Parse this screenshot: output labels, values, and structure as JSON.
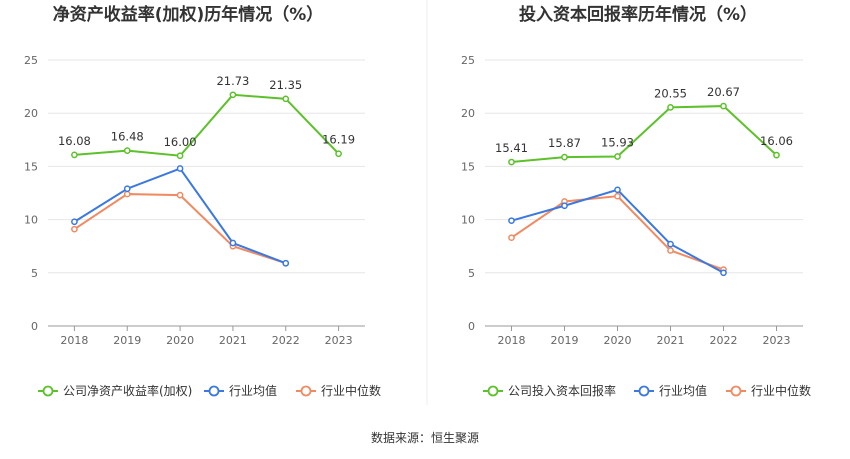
{
  "source_text": "数据来源：恒生聚源",
  "colors": {
    "company": "#5cc12a",
    "avg": "#3b78e0",
    "median": "#f08a62",
    "grid": "#e6e6e6",
    "axis": "#999999"
  },
  "chart_data": [
    {
      "type": "line",
      "title": "净资产收益率(加权)历年情况（%）",
      "categories": [
        "2018",
        "2019",
        "2020",
        "2021",
        "2022",
        "2023"
      ],
      "ylim": [
        0,
        25
      ],
      "yticks": [
        "0",
        "5",
        "10",
        "15",
        "20",
        "25"
      ],
      "grid": true,
      "legend_position": "bottom",
      "series": [
        {
          "name": "公司净资产收益率(加权)",
          "key": "company",
          "values": [
            16.08,
            16.48,
            16.0,
            21.73,
            21.35,
            16.19
          ],
          "labels": [
            "16.08",
            "16.48",
            "16.00",
            "21.73",
            "21.35",
            "16.19"
          ]
        },
        {
          "name": "行业均值",
          "key": "avg",
          "values": [
            9.8,
            12.9,
            14.8,
            7.8,
            5.9,
            null
          ]
        },
        {
          "name": "行业中位数",
          "key": "median",
          "values": [
            9.1,
            12.4,
            12.3,
            7.5,
            5.9,
            null
          ]
        }
      ]
    },
    {
      "type": "line",
      "title": "投入资本回报率历年情况（%）",
      "categories": [
        "2018",
        "2019",
        "2020",
        "2021",
        "2022",
        "2023"
      ],
      "ylim": [
        0,
        25
      ],
      "yticks": [
        "0",
        "5",
        "10",
        "15",
        "20",
        "25"
      ],
      "grid": true,
      "legend_position": "bottom",
      "series": [
        {
          "name": "公司投入资本回报率",
          "key": "company",
          "values": [
            15.41,
            15.87,
            15.93,
            20.55,
            20.67,
            16.06
          ],
          "labels": [
            "15.41",
            "15.87",
            "15.93",
            "20.55",
            "20.67",
            "16.06"
          ]
        },
        {
          "name": "行业均值",
          "key": "avg",
          "values": [
            9.9,
            11.3,
            12.8,
            7.7,
            5.0,
            null
          ]
        },
        {
          "name": "行业中位数",
          "key": "median",
          "values": [
            8.3,
            11.7,
            12.2,
            7.1,
            5.3,
            null
          ]
        }
      ]
    }
  ]
}
